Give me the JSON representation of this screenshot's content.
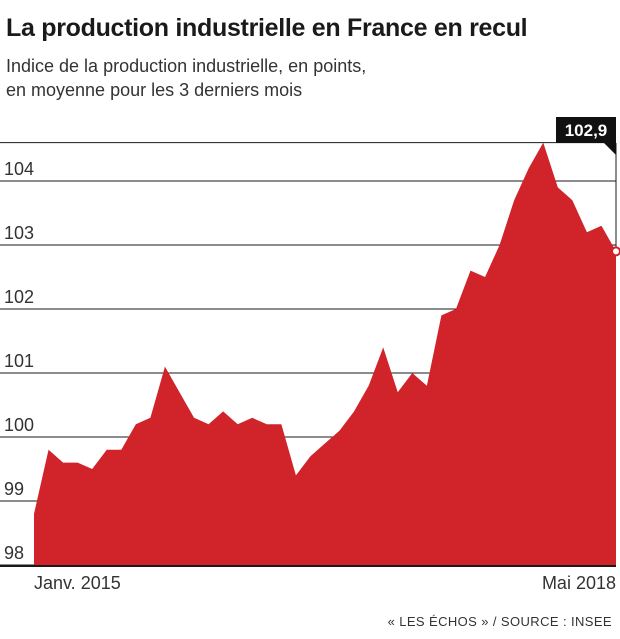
{
  "title": "La production industrielle en France en recul",
  "subtitle_lines": [
    "Indice de la production industrielle, en points,",
    "en moyenne pour les 3 derniers mois"
  ],
  "footer": "« LES ÉCHOS » / SOURCE : INSEE",
  "colors": {
    "area": "#d0232a",
    "grid": "#1a1a1a",
    "callout_bg": "#111111",
    "callout_text": "#ffffff"
  },
  "chart_data": {
    "type": "area",
    "title": "La production industrielle en France en recul",
    "subtitle": "Indice de la production industrielle, en points, en moyenne pour les 3 derniers mois",
    "xlabel": "",
    "ylabel": "",
    "x_tick_labels": [
      "Janv. 2015",
      "Mai 2018"
    ],
    "x_start": "2015-01",
    "x_end": "2018-05",
    "ylim": [
      98,
      104.6
    ],
    "yticks": [
      98,
      99,
      100,
      101,
      102,
      103,
      104
    ],
    "ytick_labels": [
      "98",
      "99",
      "100",
      "101",
      "102",
      "103",
      "104"
    ],
    "grid": true,
    "values": [
      98.8,
      99.8,
      99.6,
      99.6,
      99.5,
      99.8,
      99.8,
      100.2,
      100.3,
      101.1,
      100.7,
      100.3,
      100.2,
      100.4,
      100.2,
      100.3,
      100.2,
      100.2,
      99.4,
      99.7,
      99.9,
      100.1,
      100.4,
      100.8,
      101.4,
      100.7,
      101.0,
      100.8,
      101.9,
      102.0,
      102.6,
      102.5,
      103.0,
      103.7,
      104.2,
      104.6,
      103.9,
      103.7,
      103.2,
      103.3,
      102.9
    ],
    "annotation": {
      "label": "102,9"
    }
  }
}
